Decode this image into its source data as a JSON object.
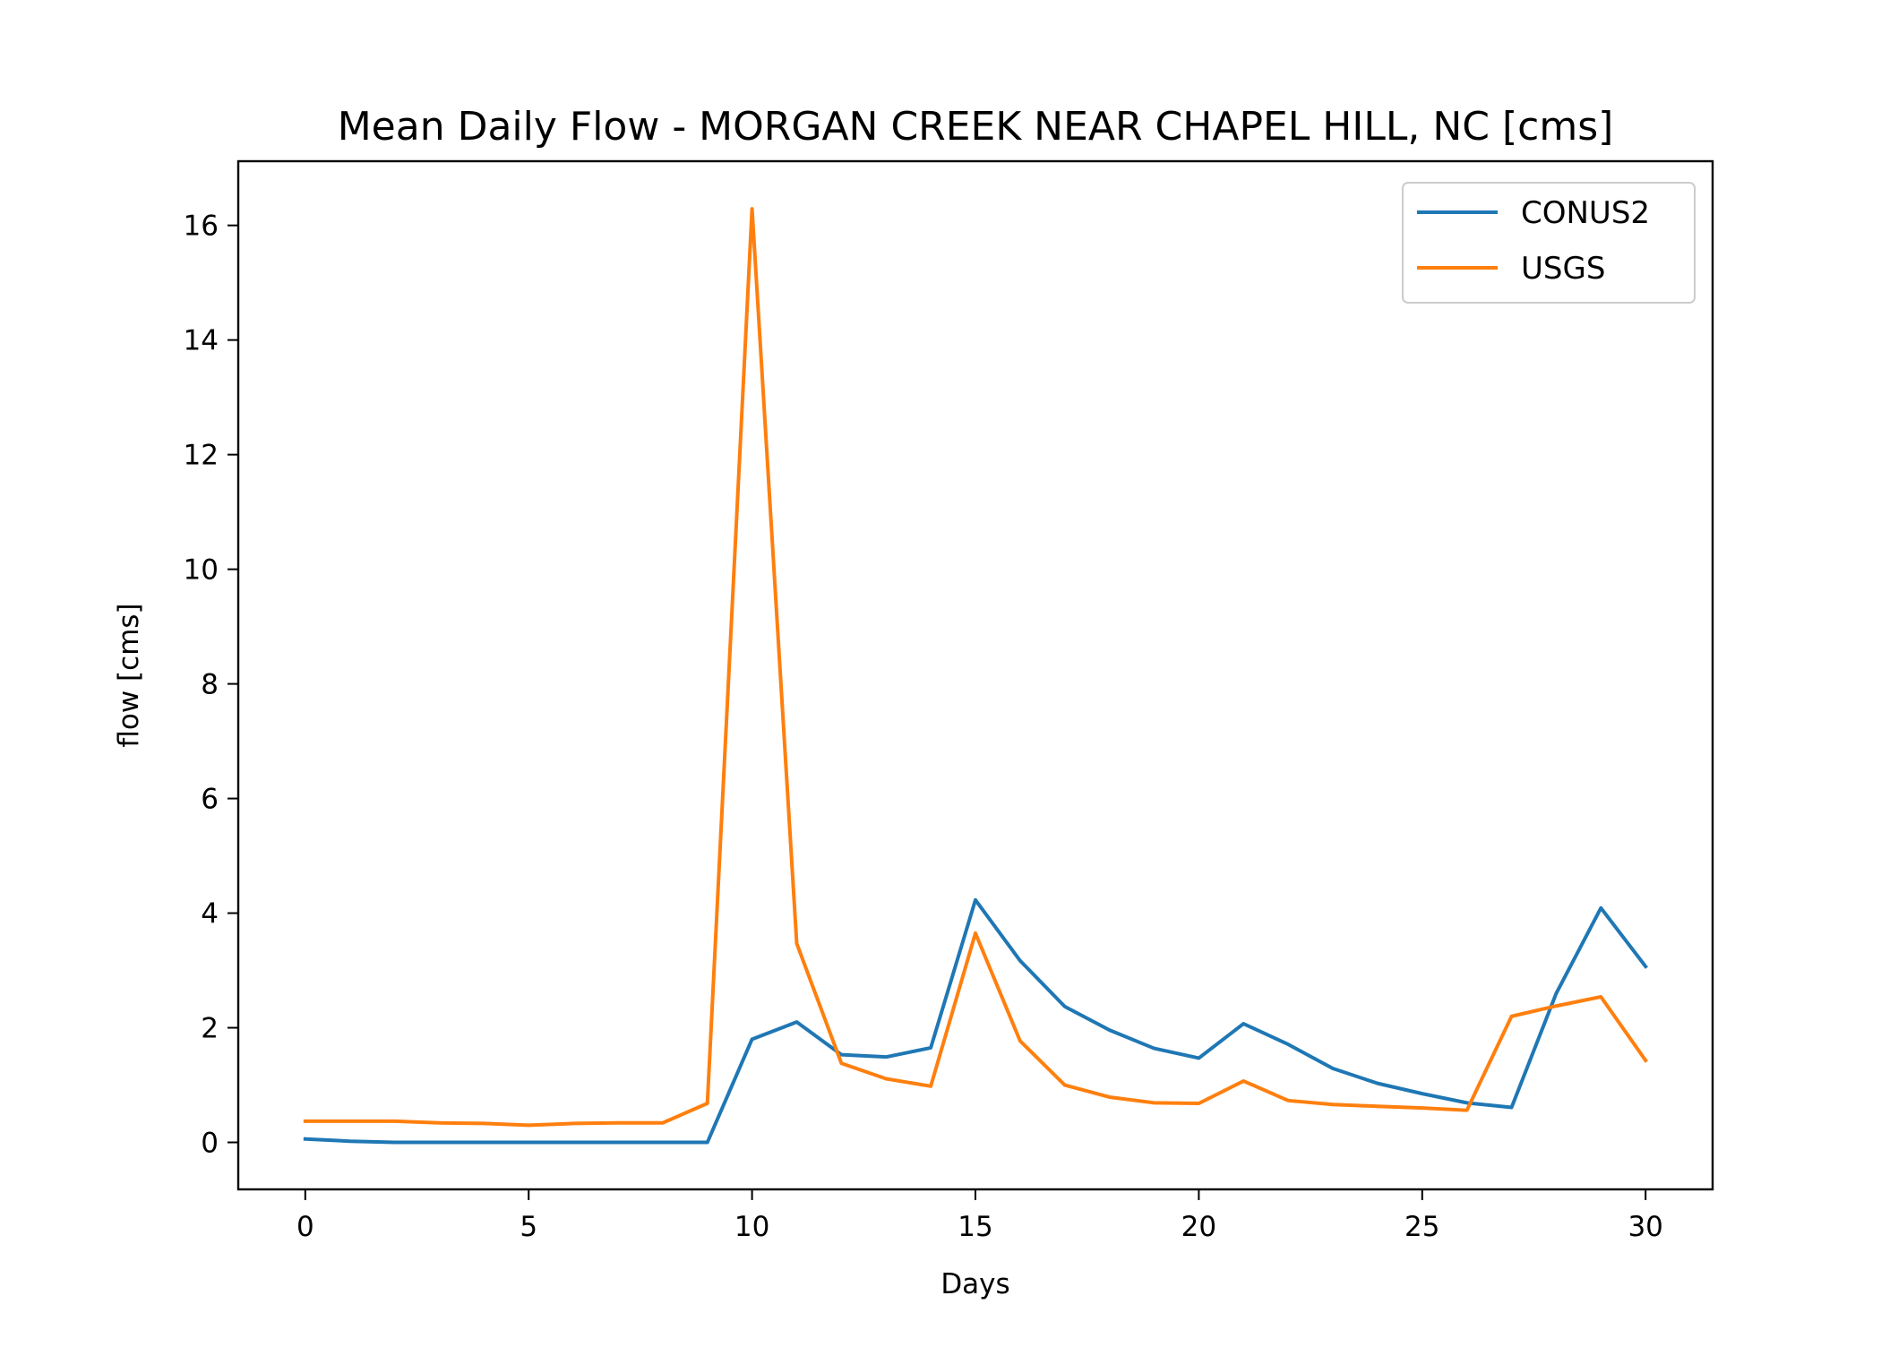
{
  "chart_data": {
    "type": "line",
    "title": "Mean Daily Flow - MORGAN CREEK NEAR CHAPEL HILL, NC [cms]",
    "xlabel": "Days",
    "ylabel": "flow [cms]",
    "xlim": [
      -1.5,
      31.5
    ],
    "ylim": [
      -0.82,
      17.12
    ],
    "xticks": [
      0,
      5,
      10,
      15,
      20,
      25,
      30
    ],
    "yticks": [
      0,
      2,
      4,
      6,
      8,
      10,
      12,
      14,
      16
    ],
    "grid": false,
    "legend_position": "top-right",
    "x": [
      0,
      1,
      2,
      3,
      4,
      5,
      6,
      7,
      8,
      9,
      10,
      11,
      12,
      13,
      14,
      15,
      16,
      17,
      18,
      19,
      20,
      21,
      22,
      23,
      24,
      25,
      26,
      27,
      28,
      29,
      30
    ],
    "series": [
      {
        "name": "CONUS2",
        "color": "#1f77b4",
        "values": [
          0.06,
          0.02,
          0.0,
          0.0,
          0.0,
          0.0,
          0.0,
          0.0,
          0.0,
          0.0,
          1.8,
          2.1,
          1.53,
          1.49,
          1.65,
          4.23,
          3.17,
          2.37,
          1.96,
          1.64,
          1.47,
          2.07,
          1.71,
          1.29,
          1.03,
          0.85,
          0.69,
          0.61,
          2.6,
          4.09,
          3.07
        ]
      },
      {
        "name": "USGS",
        "color": "#ff7f0e",
        "values": [
          0.37,
          0.37,
          0.37,
          0.34,
          0.33,
          0.3,
          0.33,
          0.34,
          0.34,
          0.68,
          16.29,
          3.47,
          1.38,
          1.11,
          0.98,
          3.65,
          1.77,
          1.0,
          0.79,
          0.69,
          0.68,
          1.07,
          0.73,
          0.66,
          0.63,
          0.6,
          0.56,
          2.2,
          2.38,
          2.54,
          1.43
        ]
      }
    ]
  }
}
